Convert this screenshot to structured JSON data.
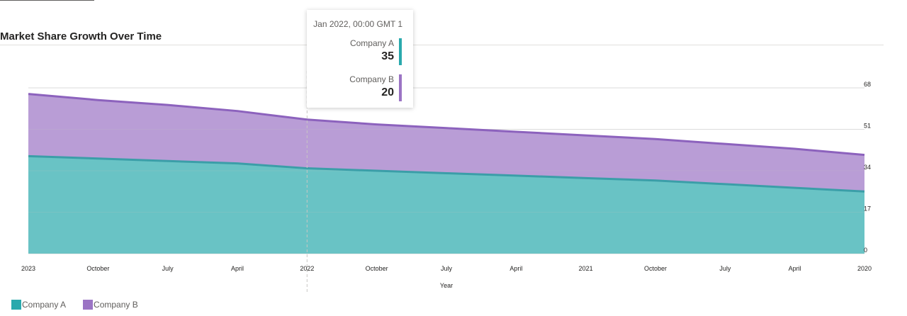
{
  "title": "Market Share Growth Over Time",
  "chart_data": {
    "type": "area",
    "stacked": true,
    "title": "Market Share Growth Over Time",
    "xlabel": "Year",
    "ylabel": "",
    "x": [
      "2023",
      "October",
      "July",
      "April",
      "2022",
      "October",
      "July",
      "April",
      "2021",
      "October",
      "July",
      "April",
      "2020"
    ],
    "x_ticks": [
      "2023",
      "October",
      "July",
      "April",
      "2022",
      "October",
      "July",
      "April",
      "2021",
      "October",
      "July",
      "April",
      "2020"
    ],
    "y_ticks": [
      0,
      17,
      34,
      51,
      68
    ],
    "ylim": [
      0,
      68
    ],
    "y_axis_position": "right",
    "grid": true,
    "legend": "bottom-left",
    "series": [
      {
        "name": "Company A",
        "color": "#2aa9ad",
        "line_color": "#3b9ea8",
        "values": [
          40,
          39,
          38,
          37,
          35,
          34,
          33,
          32,
          31,
          30,
          28.5,
          27,
          25.5
        ]
      },
      {
        "name": "Company B",
        "color": "#9b74c4",
        "line_color": "#8c62bd",
        "values": [
          25.5,
          24,
          23,
          21.5,
          20,
          19,
          18.5,
          18,
          17.5,
          17,
          16.5,
          16,
          15
        ]
      }
    ]
  },
  "tooltip": {
    "date": "Jan 2022, 00:00 GMT 1",
    "hover_index": 4,
    "items": [
      {
        "name": "Company A",
        "value": "35",
        "color": "#2aa9ad"
      },
      {
        "name": "Company B",
        "value": "20",
        "color": "#9b74c4"
      }
    ]
  },
  "legend": [
    {
      "name": "Company A",
      "color": "#2aa9ad"
    },
    {
      "name": "Company B",
      "color": "#9b74c4"
    }
  ]
}
